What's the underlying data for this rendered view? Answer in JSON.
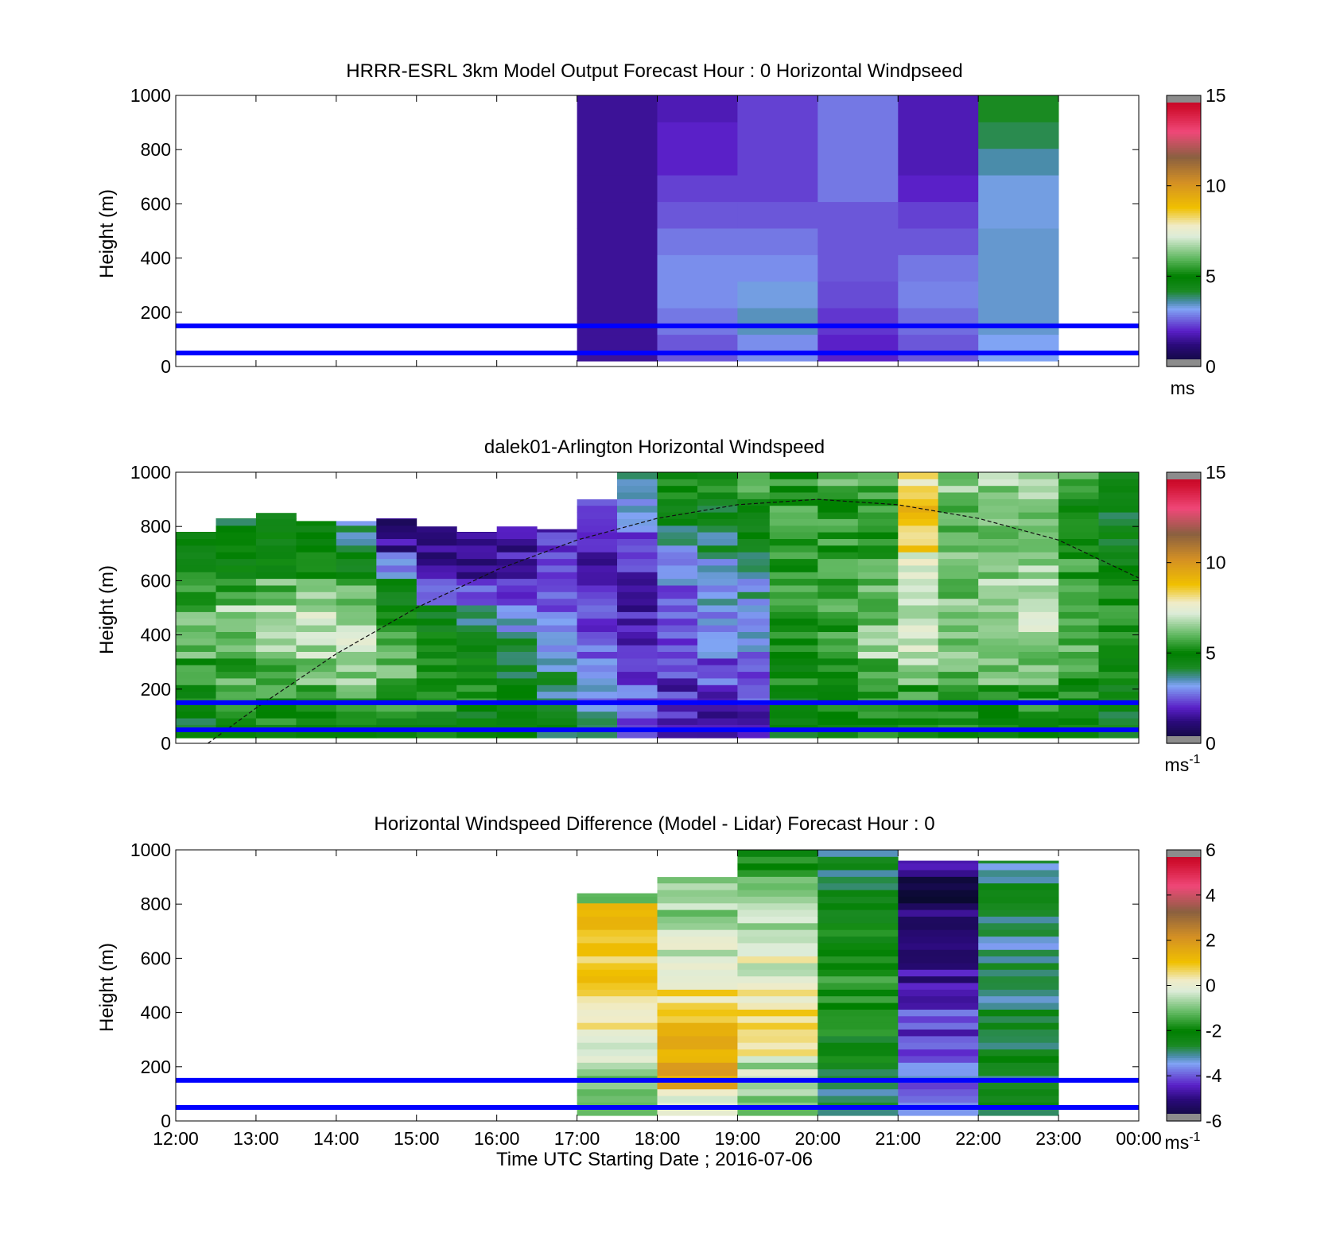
{
  "chart_data": [
    {
      "type": "heatmap",
      "title": "HRRR-ESRL 3km Model Output   Forecast Hour : 0 Horizontal Windpseed",
      "ylabel": "Height (m)",
      "xlabel": "",
      "xlim": [
        12,
        24
      ],
      "ylim": [
        0,
        1000
      ],
      "yticks": [
        "0",
        "200",
        "400",
        "600",
        "800",
        "1000"
      ],
      "colorbar": {
        "ticks": [
          "0",
          "5",
          "10",
          "15"
        ],
        "range": [
          0,
          15
        ],
        "unit": "ms",
        "unit_sup": ""
      },
      "reference_lines_m": [
        50,
        150
      ],
      "columns": [
        {
          "x0": 17,
          "x1": 18,
          "values": [
            1.5,
            1.5,
            1.5,
            1.5,
            1.5,
            1.5,
            1.5,
            1.5,
            1.5,
            1.5
          ]
        },
        {
          "x0": 18,
          "x1": 19,
          "values": [
            2.5,
            2.8,
            3.0,
            3.0,
            2.8,
            2.5,
            2.3,
            2.0,
            2.0,
            1.8
          ]
        },
        {
          "x0": 19,
          "x1": 20,
          "values": [
            3.0,
            3.5,
            3.3,
            3.0,
            2.8,
            2.5,
            2.3,
            2.3,
            2.3,
            2.3
          ]
        },
        {
          "x0": 20,
          "x1": 21,
          "values": [
            2.0,
            2.2,
            2.4,
            2.5,
            2.5,
            2.5,
            2.8,
            2.8,
            2.8,
            2.8
          ]
        },
        {
          "x0": 21,
          "x1": 22,
          "values": [
            2.5,
            2.7,
            2.9,
            2.8,
            2.5,
            2.3,
            2.0,
            1.8,
            1.8,
            1.8
          ]
        },
        {
          "x0": 22,
          "x1": 23,
          "values": [
            3.2,
            3.4,
            3.4,
            3.4,
            3.4,
            3.3,
            3.3,
            3.6,
            4.0,
            4.2
          ]
        }
      ]
    },
    {
      "type": "heatmap",
      "title": "dalek01-Arlington  Horizontal Windspeed",
      "ylabel": "Height (m)",
      "xlabel": "",
      "xlim": [
        12,
        24
      ],
      "ylim": [
        0,
        1000
      ],
      "yticks": [
        "0",
        "200",
        "400",
        "600",
        "800",
        "1000"
      ],
      "colorbar": {
        "ticks": [
          "0",
          "5",
          "10",
          "15"
        ],
        "range": [
          0,
          15
        ],
        "unit": "ms",
        "unit_sup": "-1"
      },
      "reference_lines_m": [
        50,
        150
      ],
      "overlay_curve": {
        "style": "dashed",
        "points": [
          [
            12.4,
            0
          ],
          [
            13,
            130
          ],
          [
            14,
            330
          ],
          [
            15,
            500
          ],
          [
            16,
            640
          ],
          [
            17,
            750
          ],
          [
            18,
            830
          ],
          [
            19,
            880
          ],
          [
            20,
            900
          ],
          [
            21,
            880
          ],
          [
            22,
            830
          ],
          [
            23,
            750
          ],
          [
            24,
            610
          ]
        ]
      },
      "columns": [
        {
          "x0": 12,
          "x1": 12.5,
          "top": 780,
          "values": [
            4.5,
            5.0,
            5.5,
            6.0,
            6.0,
            5.5,
            5.0,
            4.5,
            4.2,
            4.0
          ]
        },
        {
          "x0": 12.5,
          "x1": 13,
          "top": 830,
          "values": [
            4.8,
            5.2,
            5.8,
            6.2,
            6.5,
            5.8,
            5.0,
            4.5,
            4.5,
            4.5
          ]
        },
        {
          "x0": 13,
          "x1": 13.5,
          "top": 850,
          "values": [
            5.0,
            5.5,
            6.0,
            6.5,
            6.8,
            6.0,
            5.0,
            4.5,
            4.5,
            4.5
          ]
        },
        {
          "x0": 13.5,
          "x1": 14,
          "top": 820,
          "values": [
            5.0,
            5.8,
            6.3,
            6.8,
            7.0,
            6.2,
            5.2,
            4.5,
            4.5,
            3.5
          ]
        },
        {
          "x0": 14,
          "x1": 14.5,
          "top": 820,
          "values": [
            5.0,
            5.8,
            6.5,
            7.0,
            6.5,
            5.8,
            4.8,
            3.5,
            3.0,
            2.5
          ]
        },
        {
          "x0": 14.5,
          "x1": 15,
          "top": 830,
          "values": [
            4.8,
            5.5,
            6.0,
            6.0,
            5.5,
            4.8,
            3.0,
            1.5,
            1.2,
            1.5
          ]
        },
        {
          "x0": 15,
          "x1": 15.5,
          "top": 800,
          "values": [
            4.8,
            5.2,
            5.5,
            5.0,
            4.5,
            3.2,
            1.5,
            1.2,
            1.0,
            1.2
          ]
        },
        {
          "x0": 15.5,
          "x1": 16,
          "top": 780,
          "values": [
            4.5,
            5.0,
            4.8,
            4.2,
            3.5,
            2.5,
            1.5,
            1.2,
            1.2,
            1.5
          ]
        },
        {
          "x0": 16,
          "x1": 16.5,
          "top": 800,
          "values": [
            4.5,
            4.8,
            4.5,
            4.0,
            3.2,
            2.5,
            1.8,
            1.5,
            1.5,
            1.8
          ]
        },
        {
          "x0": 16.5,
          "x1": 17,
          "top": 790,
          "values": [
            4.2,
            4.0,
            3.8,
            3.2,
            2.8,
            2.5,
            2.2,
            2.0,
            2.0,
            2.2
          ]
        },
        {
          "x0": 17,
          "x1": 17.5,
          "top": 900,
          "values": [
            3.5,
            3.0,
            2.8,
            2.5,
            2.2,
            2.0,
            1.8,
            2.0,
            2.5,
            3.5
          ]
        },
        {
          "x0": 17.5,
          "x1": 18,
          "top": 1000,
          "values": [
            2.5,
            2.5,
            2.2,
            2.0,
            1.8,
            1.8,
            2.0,
            2.5,
            3.0,
            3.5
          ]
        },
        {
          "x0": 18,
          "x1": 18.5,
          "top": 1000,
          "values": [
            1.8,
            2.0,
            2.2,
            2.2,
            2.5,
            2.8,
            3.0,
            3.5,
            4.5,
            5.0
          ]
        },
        {
          "x0": 18.5,
          "x1": 19,
          "top": 1000,
          "values": [
            1.5,
            2.0,
            2.5,
            2.8,
            3.0,
            3.2,
            3.5,
            4.0,
            4.5,
            5.0
          ]
        },
        {
          "x0": 19,
          "x1": 19.4,
          "top": 1000,
          "values": [
            2.0,
            2.2,
            2.5,
            3.0,
            3.2,
            3.5,
            4.0,
            4.5,
            5.0,
            5.5
          ]
        },
        {
          "x0": 19.4,
          "x1": 20,
          "top": 1000,
          "values": [
            4.2,
            4.5,
            5.0,
            5.2,
            5.5,
            5.5,
            5.5,
            5.5,
            5.5,
            5.5
          ]
        },
        {
          "x0": 20,
          "x1": 20.5,
          "top": 1000,
          "values": [
            4.5,
            5.0,
            5.2,
            5.5,
            5.5,
            5.8,
            5.8,
            5.5,
            5.5,
            6.0
          ]
        },
        {
          "x0": 20.5,
          "x1": 21,
          "top": 1000,
          "values": [
            5.0,
            5.5,
            6.0,
            6.5,
            6.2,
            6.0,
            5.8,
            5.5,
            5.5,
            5.8
          ]
        },
        {
          "x0": 21,
          "x1": 21.5,
          "top": 1000,
          "values": [
            5.0,
            5.5,
            6.5,
            7.0,
            7.0,
            6.8,
            7.5,
            8.5,
            9.0,
            8.0
          ]
        },
        {
          "x0": 21.5,
          "x1": 22,
          "top": 1000,
          "values": [
            5.0,
            5.2,
            5.8,
            6.2,
            6.5,
            6.2,
            6.0,
            6.0,
            6.0,
            6.5
          ]
        },
        {
          "x0": 22,
          "x1": 22.5,
          "top": 1000,
          "values": [
            5.0,
            5.5,
            6.0,
            6.5,
            6.5,
            6.5,
            6.2,
            6.0,
            6.0,
            6.5
          ]
        },
        {
          "x0": 22.5,
          "x1": 23,
          "top": 1000,
          "values": [
            5.2,
            5.5,
            6.0,
            6.5,
            7.0,
            6.8,
            6.5,
            6.2,
            6.0,
            6.5
          ]
        },
        {
          "x0": 23,
          "x1": 23.5,
          "top": 1000,
          "values": [
            5.0,
            5.2,
            5.5,
            5.8,
            6.0,
            5.8,
            5.5,
            5.2,
            5.0,
            5.5
          ]
        },
        {
          "x0": 23.5,
          "x1": 24,
          "top": 1000,
          "values": [
            4.5,
            4.8,
            5.0,
            5.2,
            5.2,
            5.0,
            4.8,
            4.6,
            4.5,
            4.5
          ]
        }
      ]
    },
    {
      "type": "heatmap",
      "title": "Horizontal Windspeed Difference (Model - Lidar) Forecast Hour : 0",
      "ylabel": "Height (m)",
      "xlabel": "Time UTC  Starting Date ; 2016-07-06",
      "xlim": [
        12,
        24
      ],
      "ylim": [
        0,
        1000
      ],
      "yticks": [
        "0",
        "200",
        "400",
        "600",
        "800",
        "1000"
      ],
      "xticks": [
        "12:00",
        "13:00",
        "14:00",
        "15:00",
        "16:00",
        "17:00",
        "18:00",
        "19:00",
        "20:00",
        "21:00",
        "22:00",
        "23:00",
        "00:00"
      ],
      "colorbar": {
        "ticks": [
          "-6",
          "-4",
          "-2",
          "0",
          "2",
          "4",
          "6"
        ],
        "range": [
          -6,
          6
        ],
        "unit": "ms",
        "unit_sup": "-1"
      },
      "reference_lines_m": [
        50,
        150
      ],
      "columns": [
        {
          "x0": 17,
          "x1": 18,
          "top": 840,
          "values": [
            -1.5,
            -1.0,
            -0.5,
            0.2,
            0.5,
            0.8,
            1.2,
            1.2,
            -1.0,
            -2.5
          ]
        },
        {
          "x0": 18,
          "x1": 19,
          "top": 900,
          "values": [
            0.0,
            1.5,
            1.5,
            1.2,
            0.5,
            0.2,
            -0.3,
            -0.8,
            -1.0,
            -1.5
          ]
        },
        {
          "x0": 19,
          "x1": 20,
          "top": 1000,
          "values": [
            -1.0,
            -0.5,
            0.2,
            0.5,
            0.3,
            -0.1,
            -0.3,
            -0.6,
            -1.0,
            -2.0
          ]
        },
        {
          "x0": 20,
          "x1": 21,
          "top": 1000,
          "values": [
            -3.0,
            -2.5,
            -2.2,
            -2.0,
            -1.8,
            -1.8,
            -2.0,
            -2.2,
            -2.5,
            -2.8
          ]
        },
        {
          "x0": 21,
          "x1": 22,
          "top": 960,
          "values": [
            -3.5,
            -3.8,
            -4.0,
            -4.2,
            -4.5,
            -4.8,
            -5.0,
            -5.2,
            -5.5,
            -5.0
          ]
        },
        {
          "x0": 22,
          "x1": 23,
          "top": 960,
          "values": [
            -2.8,
            -2.8,
            -2.6,
            -2.6,
            -2.8,
            -3.0,
            -3.0,
            -2.8,
            -2.8,
            -3.0
          ]
        }
      ]
    }
  ]
}
